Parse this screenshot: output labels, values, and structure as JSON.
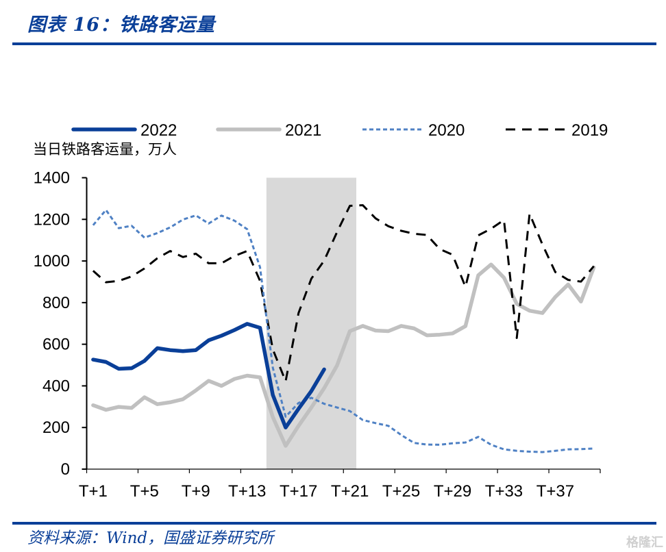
{
  "header": {
    "title": "图表 16：铁路客运量"
  },
  "footer": {
    "source": "资料来源：Wind，国盛证券研究所",
    "watermark": "格隆汇"
  },
  "colors": {
    "brand": "#0a3f98",
    "series_2022": "#0a3f98",
    "series_2021": "#c0c0c0",
    "series_2020": "#4f81c4",
    "series_2019": "#000000",
    "shade": "#d9d9d9"
  },
  "chart_data": {
    "type": "line",
    "title": "铁路客运量",
    "ylabel": "当日铁路客运量，万人",
    "xlabel": "",
    "ylim": [
      0,
      1400
    ],
    "yticks": [
      0,
      200,
      400,
      600,
      800,
      1000,
      1200,
      1400
    ],
    "categories": [
      "T+1",
      "T+2",
      "T+3",
      "T+4",
      "T+5",
      "T+6",
      "T+7",
      "T+8",
      "T+9",
      "T+10",
      "T+11",
      "T+12",
      "T+13",
      "T+14",
      "T+15",
      "T+16",
      "T+17",
      "T+18",
      "T+19",
      "T+20",
      "T+21",
      "T+22",
      "T+23",
      "T+24",
      "T+25",
      "T+26",
      "T+27",
      "T+28",
      "T+29",
      "T+30",
      "T+31",
      "T+32",
      "T+33",
      "T+34",
      "T+35",
      "T+36",
      "T+37",
      "T+38",
      "T+39",
      "T+40"
    ],
    "xtick_labels": [
      "T+1",
      "T+5",
      "T+9",
      "T+13",
      "T+17",
      "T+21",
      "T+25",
      "T+29",
      "T+33",
      "T+37"
    ],
    "grid": false,
    "legend_position": "top",
    "shaded_range": [
      "T+15",
      "T+21"
    ],
    "series": [
      {
        "name": "2022",
        "style": "solid-thick",
        "values": [
          526,
          515,
          482,
          485,
          520,
          581,
          572,
          567,
          572,
          619,
          641,
          668,
          698,
          679,
          356,
          200,
          290,
          375,
          479,
          null,
          null,
          null,
          null,
          null,
          null,
          null,
          null,
          null,
          null,
          null,
          null,
          null,
          null,
          null,
          null,
          null,
          null,
          null,
          null,
          null
        ]
      },
      {
        "name": "2021",
        "style": "solid-thick",
        "values": [
          307,
          285,
          299,
          294,
          345,
          312,
          321,
          336,
          378,
          424,
          400,
          433,
          449,
          441,
          250,
          112,
          208,
          296,
          389,
          498,
          663,
          688,
          666,
          663,
          688,
          676,
          643,
          646,
          652,
          687,
          931,
          983,
          920,
          794,
          761,
          750,
          827,
          887,
          805,
          969
        ]
      },
      {
        "name": "2020",
        "style": "dotted",
        "values": [
          1172,
          1245,
          1158,
          1169,
          1112,
          1134,
          1161,
          1199,
          1219,
          1180,
          1218,
          1194,
          1153,
          970,
          487,
          252,
          318,
          343,
          314,
          296,
          279,
          236,
          221,
          208,
          164,
          126,
          118,
          117,
          124,
          128,
          155,
          117,
          95,
          88,
          84,
          82,
          88,
          95,
          96,
          99
        ]
      },
      {
        "name": "2019",
        "style": "dashed",
        "values": [
          953,
          898,
          904,
          926,
          964,
          1013,
          1048,
          1019,
          1035,
          989,
          989,
          1024,
          1048,
          904,
          575,
          422,
          750,
          915,
          1002,
          1139,
          1265,
          1268,
          1205,
          1167,
          1145,
          1131,
          1125,
          1057,
          1030,
          876,
          1123,
          1155,
          1197,
          630,
          1227,
          1079,
          947,
          909,
          901,
          975
        ]
      }
    ]
  }
}
